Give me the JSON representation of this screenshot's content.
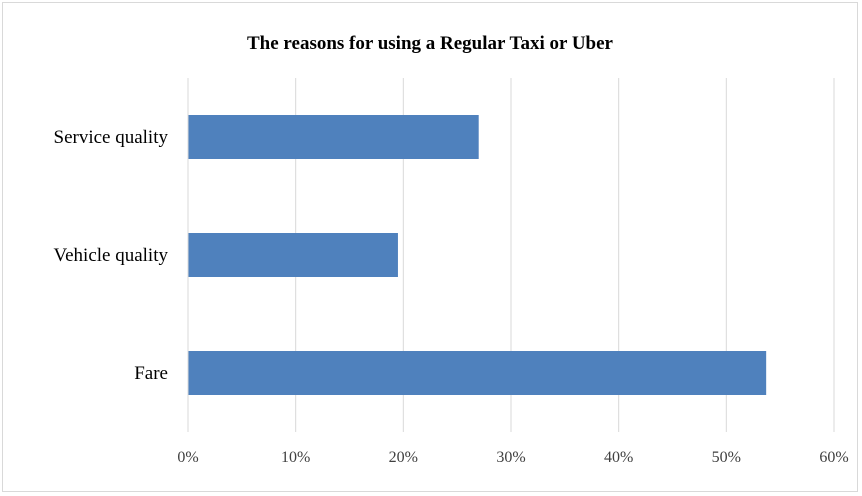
{
  "chart_data": {
    "type": "bar",
    "orientation": "horizontal",
    "title": "The reasons for using a Regular Taxi or Uber",
    "categories": [
      "Service quality",
      "Vehicle quality",
      "Fare"
    ],
    "values": [
      27,
      19.5,
      53.7
    ],
    "xlim": [
      0,
      60
    ],
    "x_ticks": [
      "0%",
      "10%",
      "20%",
      "30%",
      "40%",
      "50%",
      "60%"
    ],
    "x_tick_values": [
      0,
      10,
      20,
      30,
      40,
      50,
      60
    ],
    "grid": "vertical",
    "legend": "none",
    "bar_color": "#4f81bd",
    "grid_color": "#d9d9d9"
  }
}
